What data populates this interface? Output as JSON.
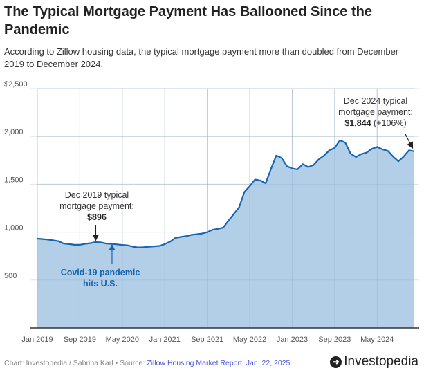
{
  "title": "The Typical Mortgage Payment Has Ballooned Since the Pandemic",
  "subtitle": "According to Zillow housing data, the typical mortgage payment more than doubled from December 2019 to December 2024.",
  "chart_data": {
    "type": "area",
    "title": "The Typical Mortgage Payment Has Ballooned Since the Pandemic",
    "xlabel": "",
    "ylabel": "",
    "x_start": "Jan 2019",
    "x_end": "Dec 2024",
    "frequency": "monthly",
    "ylim": [
      0,
      2500
    ],
    "yticks": [
      500,
      1000,
      1500,
      2000,
      2500
    ],
    "ytick_labels": [
      "500",
      "1,000",
      "1,500",
      "2,000",
      "$2,500"
    ],
    "xtick_labels": [
      "Jan 2019",
      "Sep 2019",
      "May 2020",
      "Jan 2021",
      "Sep 2021",
      "May 2022",
      "Jan 2023",
      "Sep 2023",
      "May 2024"
    ],
    "xtick_month_index": [
      0,
      8,
      16,
      24,
      32,
      40,
      48,
      56,
      64
    ],
    "grid": true,
    "values": [
      932,
      928,
      922,
      915,
      905,
      880,
      875,
      868,
      868,
      878,
      885,
      896,
      892,
      880,
      878,
      872,
      866,
      862,
      848,
      840,
      843,
      848,
      852,
      856,
      875,
      900,
      940,
      950,
      958,
      972,
      978,
      985,
      1000,
      1025,
      1035,
      1048,
      1120,
      1190,
      1260,
      1420,
      1480,
      1550,
      1540,
      1510,
      1660,
      1800,
      1775,
      1690,
      1665,
      1655,
      1710,
      1680,
      1700,
      1760,
      1800,
      1855,
      1880,
      1960,
      1935,
      1820,
      1785,
      1815,
      1830,
      1870,
      1890,
      1865,
      1850,
      1790,
      1740,
      1790,
      1855,
      1844
    ],
    "line_color": "#1565b0",
    "fill_color": "#b3cfe7",
    "annotations": [
      {
        "line1": "Dec 2019 typical",
        "line2": "mortgage payment:",
        "value": "$896",
        "extra": "",
        "month_index": 11
      },
      {
        "line1": "Dec 2024 typical",
        "line2": "mortgage payment:",
        "value": "$1,844",
        "extra": "(+106%)",
        "month_index": 71
      },
      {
        "line1": "Covid-19 pandemic",
        "line2": "hits U.S.",
        "month_index": 14
      }
    ]
  },
  "footer": {
    "credit": "Chart: Investopedia / Sabrina Karl • Source: ",
    "source": "Zillow Housing Market Report, Jan. 22, 2025"
  },
  "logo": {
    "text": "Investopedia"
  }
}
